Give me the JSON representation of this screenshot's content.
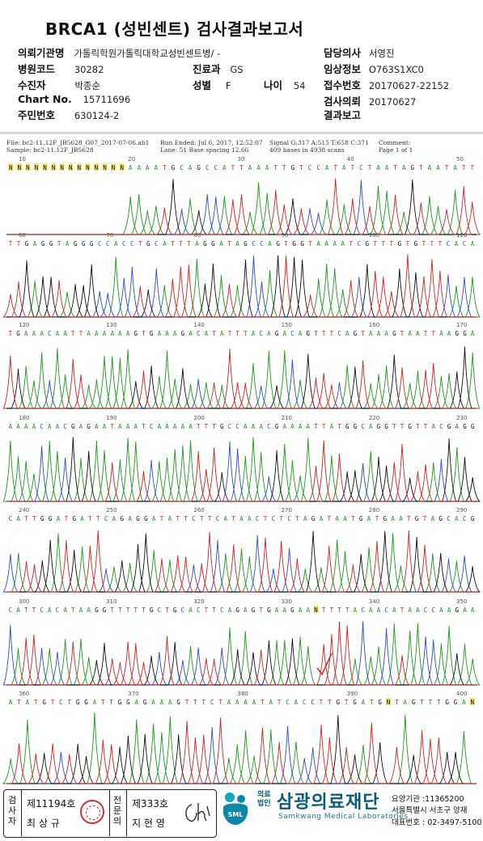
{
  "report": {
    "title": "BRCA1 (성빈센트) 검사결과보고서",
    "fields": {
      "org_label": "의뢰기관명",
      "org_value": "가톨릭학원가톨릭대학교성빈센트병/ -",
      "hospital_code_label": "병원코드",
      "hospital_code_value": "30282",
      "dept_label": "진료과",
      "dept_value": "GS",
      "patient_label": "수진자",
      "patient_value": "박종순",
      "sex_label": "성별",
      "sex_value": "F",
      "age_label": "나이",
      "age_value": "54",
      "chart_label": "Chart No.",
      "chart_value": "15711696",
      "id_label": "주민번호",
      "id_value": "630124-2",
      "doctor_label": "담당의사",
      "doctor_value": "서영진",
      "clinical_label": "임상정보",
      "clinical_value": "O763S1XC0",
      "receipt_label": "접수번호",
      "receipt_value": "20170627-22152",
      "request_label": "검사의뢰",
      "request_value": "20170627",
      "result_label": "결과보고",
      "result_value": ""
    }
  },
  "trace": {
    "file_line": "File: bc2-11.12F_JB5628_G07_2017-07-06.ab1",
    "sample_line": "Sample: bc2-11.12F_JB5628",
    "run_line": "Run Ended: Jul 6, 2017, 12:52:07",
    "lane_line": "Lane: 51   Base spacing 12.66",
    "signal_line": "Signal G:317 A:515 T:658 C:371",
    "bases_line": "409 bases in 4938 scans",
    "comment_label": "Comment:",
    "page_line": "Page 1 of 1",
    "colors": {
      "A": "#1a9a1a",
      "C": "#2a4bd7",
      "G": "#111111",
      "T": "#d62020"
    },
    "rows": [
      {
        "ticks": [
          "10",
          "20",
          "30",
          "40",
          "50"
        ],
        "seq": "NNNNNNNNNNNNNNAAAATGCAGCCATTAAATTGTCCATATCTAATAGTAATATT"
      },
      {
        "ticks": [
          "60",
          "70",
          "80",
          "90",
          "100",
          "110"
        ],
        "seq": "TTGAGGTAGGGCCACCTGCATTTAGGATAGCCAGTGGTAAAATCGTTTGTGTTTCACA"
      },
      {
        "ticks": [
          "120",
          "130",
          "140",
          "150",
          "160",
          "170"
        ],
        "seq": "TGAAACAATTAAAAAAGTGAAAGACATATTTACAGACAGTTTCAGTAAAGTAATTAAGGA"
      },
      {
        "ticks": [
          "180",
          "190",
          "200",
          "210",
          "220",
          "230"
        ],
        "seq": "AAAACAACGAGAATAAATCAAAAATTTGCCAAACGAAAATTATGGCAGGTTGTTACGAGG"
      },
      {
        "ticks": [
          "240",
          "250",
          "260",
          "270",
          "280",
          "290"
        ],
        "seq": "CATTGGATGATTCAGAGGATATTCTTCATAACTCTCTAGATAATGATGAATGTAGCACG"
      },
      {
        "ticks": [
          "300",
          "310",
          "320",
          "330",
          "340",
          "350"
        ],
        "seq": "CATTCACATAAGGTTTTTGCTGCACTTCAGAGTGAAGAANTTTTACAACATAACCAAGAA"
      },
      {
        "ticks": [
          "360",
          "370",
          "380",
          "390",
          "400"
        ],
        "seq": "ATATGTCTGGATTGGAGAAAGTTTCTAAAATATCACCTTGTGATGNTAGTTTGGAN"
      }
    ]
  },
  "footer": {
    "label_1": "검사자",
    "reg_1": "제11194호",
    "name_1": "최 상 규",
    "label_2": "전문의",
    "reg_2": "제333호",
    "name_2": "지 현 영",
    "org_small": "의료법인",
    "org_name": "삼광의료재단",
    "org_eng": "Samkwang Medical Laboratories",
    "logo_text": "SML",
    "code_line": "요양기관 :11365200",
    "address_line": "서울특별시 서초구 양재",
    "phone_line": "대표번호 : 02-3497-5100"
  }
}
